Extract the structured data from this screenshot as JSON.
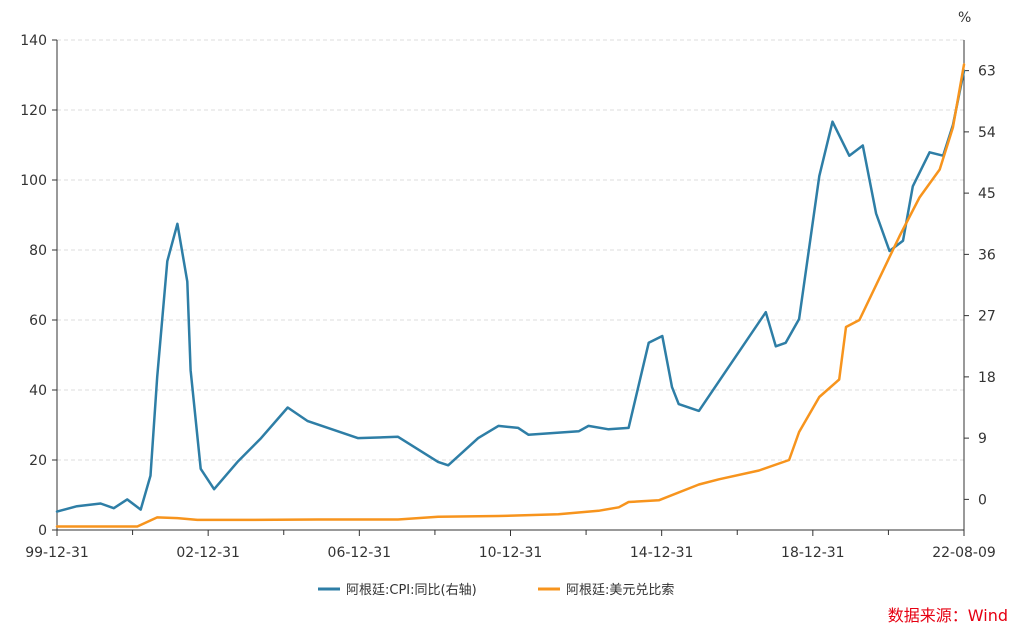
{
  "chart_data": {
    "type": "line",
    "x_tick_labels": [
      "99-12-31",
      "02-12-31",
      "06-12-31",
      "10-12-31",
      "14-12-31",
      "18-12-31",
      "22-08-09"
    ],
    "x_range": [
      "1999-12-31",
      "2022-08-09"
    ],
    "y_left": {
      "ticks": [
        0,
        20,
        40,
        60,
        80,
        100,
        120,
        140
      ],
      "range": [
        0,
        140
      ]
    },
    "y_right": {
      "unit": "%",
      "ticks": [
        0,
        9,
        18,
        27,
        36,
        45,
        54,
        63
      ],
      "range": [
        -4.5,
        67.5
      ]
    },
    "grid": true,
    "legend_position": "bottom-center",
    "series": [
      {
        "name": "阿根廷:CPI:同比(右轴)",
        "axis": "right",
        "color": "#2e7ea6",
        "points": [
          [
            "1999-12-31",
            -1.8
          ],
          [
            "2000-06-30",
            -1.0
          ],
          [
            "2001-01-31",
            -0.6
          ],
          [
            "2001-05-31",
            -1.3
          ],
          [
            "2001-09-30",
            0.0
          ],
          [
            "2002-01-31",
            -1.5
          ],
          [
            "2002-04-30",
            3.5
          ],
          [
            "2002-06-30",
            18.0
          ],
          [
            "2002-09-30",
            35.0
          ],
          [
            "2002-12-31",
            40.5
          ],
          [
            "2003-03-31",
            32.0
          ],
          [
            "2003-04-30",
            19.0
          ],
          [
            "2003-07-31",
            4.5
          ],
          [
            "2003-11-30",
            1.5
          ],
          [
            "2004-06-30",
            5.5
          ],
          [
            "2005-01-31",
            9.0
          ],
          [
            "2005-09-30",
            13.5
          ],
          [
            "2006-03-31",
            11.5
          ],
          [
            "2007-06-30",
            9.0
          ],
          [
            "2008-06-30",
            9.2
          ],
          [
            "2009-06-30",
            5.5
          ],
          [
            "2009-09-30",
            5.0
          ],
          [
            "2010-06-30",
            9.0
          ],
          [
            "2010-12-31",
            10.8
          ],
          [
            "2011-06-30",
            10.5
          ],
          [
            "2011-09-30",
            9.5
          ],
          [
            "2012-12-31",
            10.0
          ],
          [
            "2013-03-31",
            10.8
          ],
          [
            "2013-09-30",
            10.3
          ],
          [
            "2014-03-31",
            10.5
          ],
          [
            "2014-09-30",
            23.0
          ],
          [
            "2015-01-31",
            24.0
          ],
          [
            "2015-04-30",
            16.5
          ],
          [
            "2015-06-30",
            14.0
          ],
          [
            "2015-12-31",
            13.0
          ],
          [
            "2017-08-31",
            27.5
          ],
          [
            "2017-11-30",
            22.5
          ],
          [
            "2018-02-28",
            23.0
          ],
          [
            "2018-06-30",
            26.5
          ],
          [
            "2018-12-31",
            47.5
          ],
          [
            "2019-04-30",
            55.5
          ],
          [
            "2019-09-30",
            50.5
          ],
          [
            "2020-01-31",
            52.0
          ],
          [
            "2020-05-31",
            42.0
          ],
          [
            "2020-09-30",
            36.5
          ],
          [
            "2021-01-31",
            38.0
          ],
          [
            "2021-04-30",
            46.0
          ],
          [
            "2021-09-30",
            51.0
          ],
          [
            "2022-01-31",
            50.5
          ],
          [
            "2022-04-30",
            55.0
          ],
          [
            "2022-08-09",
            63.0
          ]
        ]
      },
      {
        "name": "阿根廷:美元兑比索",
        "axis": "left",
        "color": "#f7941d",
        "points": [
          [
            "1999-12-31",
            1.0
          ],
          [
            "2001-12-31",
            1.0
          ],
          [
            "2002-06-30",
            3.6
          ],
          [
            "2002-12-31",
            3.4
          ],
          [
            "2003-06-30",
            2.9
          ],
          [
            "2004-06-30",
            2.9
          ],
          [
            "2006-06-30",
            3.0
          ],
          [
            "2008-06-30",
            3.0
          ],
          [
            "2009-06-30",
            3.8
          ],
          [
            "2010-12-31",
            4.0
          ],
          [
            "2012-06-30",
            4.5
          ],
          [
            "2013-06-30",
            5.5
          ],
          [
            "2013-12-31",
            6.5
          ],
          [
            "2014-03-31",
            8.0
          ],
          [
            "2014-12-31",
            8.5
          ],
          [
            "2015-12-31",
            13.0
          ],
          [
            "2016-06-30",
            14.5
          ],
          [
            "2017-06-30",
            17.0
          ],
          [
            "2018-03-31",
            20.0
          ],
          [
            "2018-06-30",
            28.0
          ],
          [
            "2018-12-31",
            38.0
          ],
          [
            "2019-06-30",
            43.0
          ],
          [
            "2019-08-31",
            58.0
          ],
          [
            "2019-12-31",
            60.0
          ],
          [
            "2020-12-31",
            84.0
          ],
          [
            "2021-06-30",
            95.0
          ],
          [
            "2021-12-31",
            103.0
          ],
          [
            "2022-04-30",
            115.0
          ],
          [
            "2022-08-09",
            133.0
          ]
        ]
      }
    ]
  },
  "source": {
    "text": "数据来源：Wind",
    "color": "#e60012"
  },
  "colors": {
    "grid": "#dddddd",
    "axis": "#333333",
    "text": "#333333"
  }
}
